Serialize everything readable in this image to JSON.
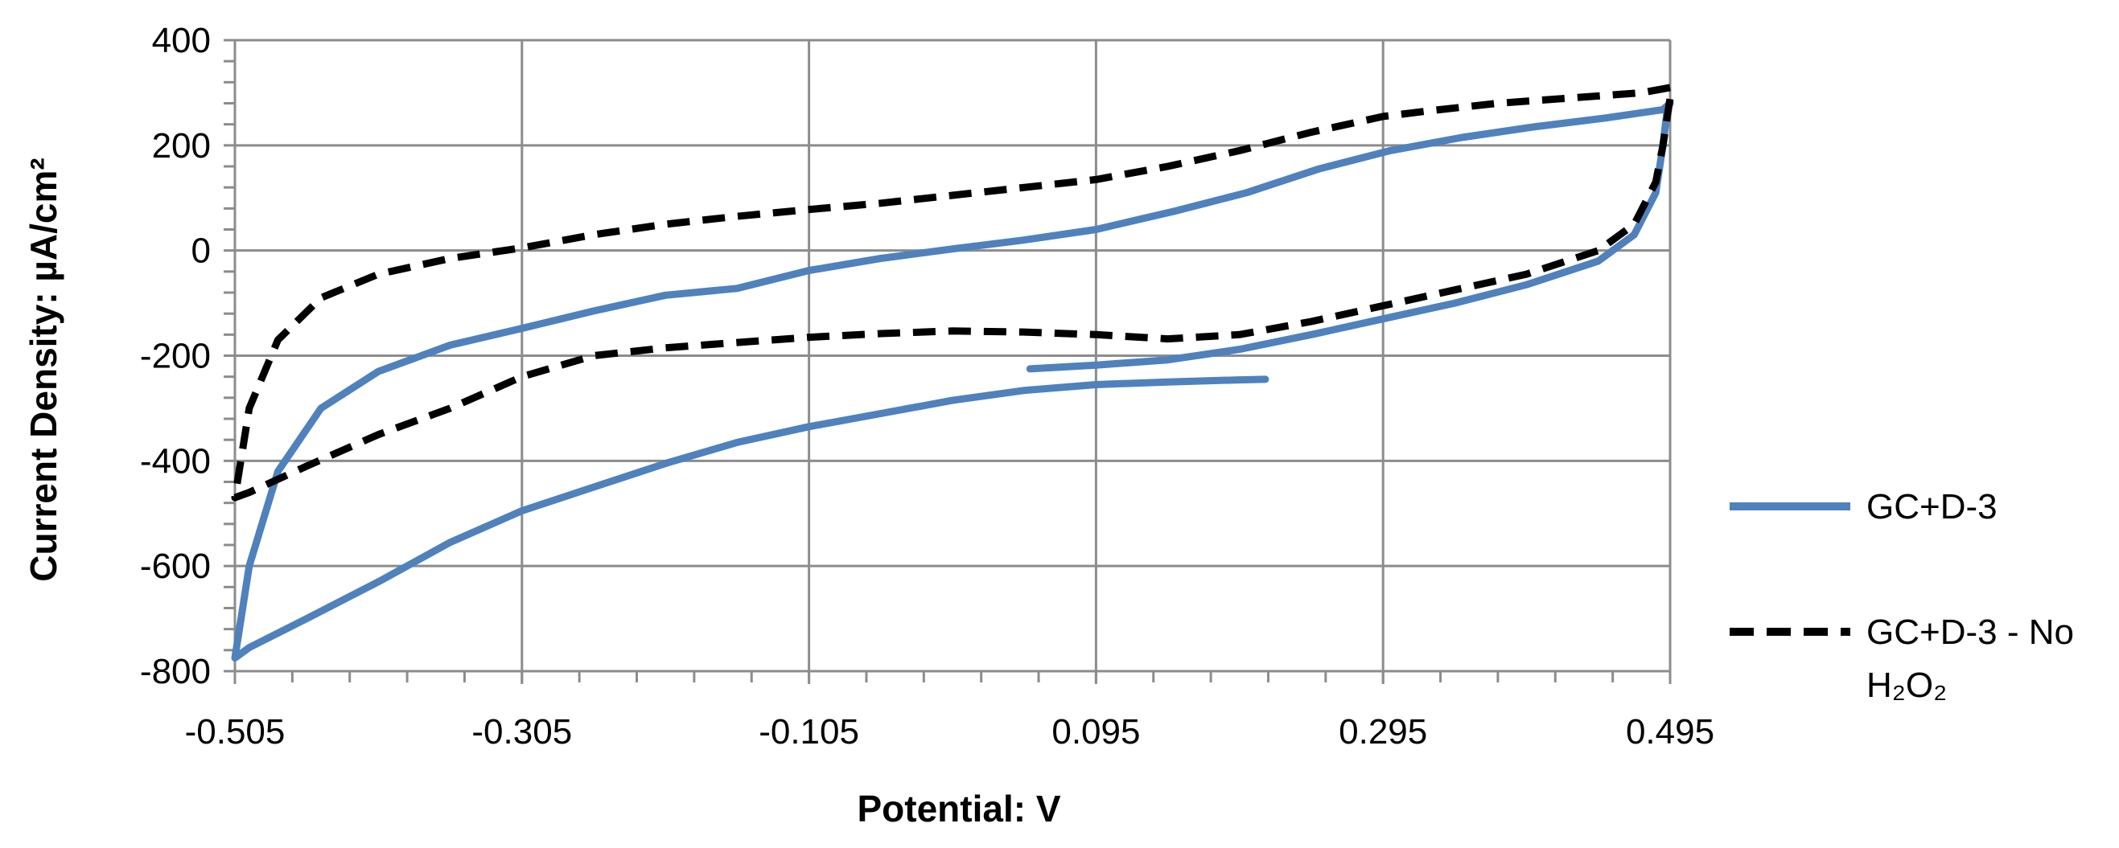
{
  "chart_data": {
    "type": "line",
    "title": "",
    "xlabel": "Potential: V",
    "ylabel": "Current Density: µA/cm²",
    "xlim": [
      -0.505,
      0.495
    ],
    "ylim": [
      -800,
      400
    ],
    "x_ticks": [
      -0.505,
      -0.305,
      -0.105,
      0.095,
      0.295,
      0.495
    ],
    "x_tick_labels": [
      "-0.505",
      "-0.305",
      "-0.105",
      "0.095",
      "0.295",
      "0.495"
    ],
    "y_ticks": [
      400,
      200,
      0,
      -200,
      -400,
      -600,
      -800
    ],
    "y_tick_labels": [
      "400",
      "200",
      "0",
      "-200",
      "-400",
      "-600",
      "-800"
    ],
    "grid": true,
    "legend_position": "right",
    "series": [
      {
        "name": "GC+D-3",
        "color": "#4F81BD",
        "style": "solid",
        "segments": [
          [
            [
              0.049,
              -225
            ],
            [
              0.095,
              -218
            ],
            [
              0.145,
              -208
            ],
            [
              0.195,
              -188
            ],
            [
              0.245,
              -160
            ],
            [
              0.295,
              -130
            ],
            [
              0.345,
              -100
            ],
            [
              0.395,
              -65
            ],
            [
              0.445,
              -20
            ],
            [
              0.47,
              30
            ],
            [
              0.485,
              110
            ],
            [
              0.49,
              200
            ],
            [
              0.493,
              268
            ],
            [
              0.495,
              280
            ],
            [
              0.49,
              268
            ],
            [
              0.45,
              252
            ],
            [
              0.4,
              235
            ],
            [
              0.35,
              215
            ],
            [
              0.3,
              190
            ],
            [
              0.25,
              155
            ],
            [
              0.2,
              110
            ],
            [
              0.15,
              75
            ],
            [
              0.095,
              40
            ],
            [
              0.045,
              20
            ],
            [
              -0.005,
              3
            ],
            [
              -0.055,
              -15
            ],
            [
              -0.105,
              -38
            ],
            [
              -0.155,
              -72
            ],
            [
              -0.205,
              -85
            ],
            [
              -0.255,
              -115
            ],
            [
              -0.305,
              -148
            ],
            [
              -0.355,
              -180
            ],
            [
              -0.405,
              -230
            ],
            [
              -0.445,
              -300
            ],
            [
              -0.475,
              -420
            ],
            [
              -0.495,
              -600
            ],
            [
              -0.505,
              -775
            ],
            [
              -0.495,
              -755
            ],
            [
              -0.455,
              -700
            ],
            [
              -0.405,
              -630
            ],
            [
              -0.355,
              -555
            ],
            [
              -0.305,
              -495
            ],
            [
              -0.255,
              -450
            ],
            [
              -0.205,
              -405
            ],
            [
              -0.155,
              -365
            ],
            [
              -0.105,
              -335
            ],
            [
              -0.055,
              -310
            ],
            [
              -0.005,
              -285
            ],
            [
              0.045,
              -266
            ],
            [
              0.095,
              -255
            ],
            [
              0.145,
              -250
            ],
            [
              0.195,
              -246
            ],
            [
              0.213,
              -245
            ]
          ]
        ]
      },
      {
        "name": "GC+D-3 - No H₂O₂",
        "color": "#000000",
        "style": "dashed",
        "segments": [
          [
            [
              0.495,
              310
            ],
            [
              0.475,
              300
            ],
            [
              0.425,
              290
            ],
            [
              0.375,
              280
            ],
            [
              0.325,
              265
            ],
            [
              0.295,
              255
            ],
            [
              0.245,
              225
            ],
            [
              0.195,
              190
            ],
            [
              0.145,
              160
            ],
            [
              0.095,
              135
            ],
            [
              0.045,
              120
            ],
            [
              -0.005,
              105
            ],
            [
              -0.055,
              90
            ],
            [
              -0.105,
              78
            ],
            [
              -0.155,
              65
            ],
            [
              -0.205,
              50
            ],
            [
              -0.255,
              30
            ],
            [
              -0.305,
              5
            ],
            [
              -0.355,
              -15
            ],
            [
              -0.405,
              -45
            ],
            [
              -0.445,
              -90
            ],
            [
              -0.475,
              -170
            ],
            [
              -0.495,
              -300
            ],
            [
              -0.505,
              -470
            ],
            [
              -0.495,
              -460
            ],
            [
              -0.455,
              -410
            ],
            [
              -0.405,
              -350
            ],
            [
              -0.355,
              -300
            ],
            [
              -0.305,
              -240
            ],
            [
              -0.255,
              -200
            ],
            [
              -0.205,
              -185
            ],
            [
              -0.155,
              -175
            ],
            [
              -0.105,
              -165
            ],
            [
              -0.055,
              -158
            ],
            [
              -0.005,
              -153
            ],
            [
              0.045,
              -155
            ],
            [
              0.095,
              -160
            ],
            [
              0.145,
              -168
            ],
            [
              0.195,
              -160
            ],
            [
              0.245,
              -135
            ],
            [
              0.295,
              -105
            ],
            [
              0.345,
              -75
            ],
            [
              0.395,
              -45
            ],
            [
              0.445,
              0
            ],
            [
              0.47,
              50
            ],
            [
              0.485,
              130
            ],
            [
              0.49,
              200
            ],
            [
              0.495,
              290
            ],
            [
              0.497,
              310
            ]
          ]
        ]
      }
    ]
  }
}
